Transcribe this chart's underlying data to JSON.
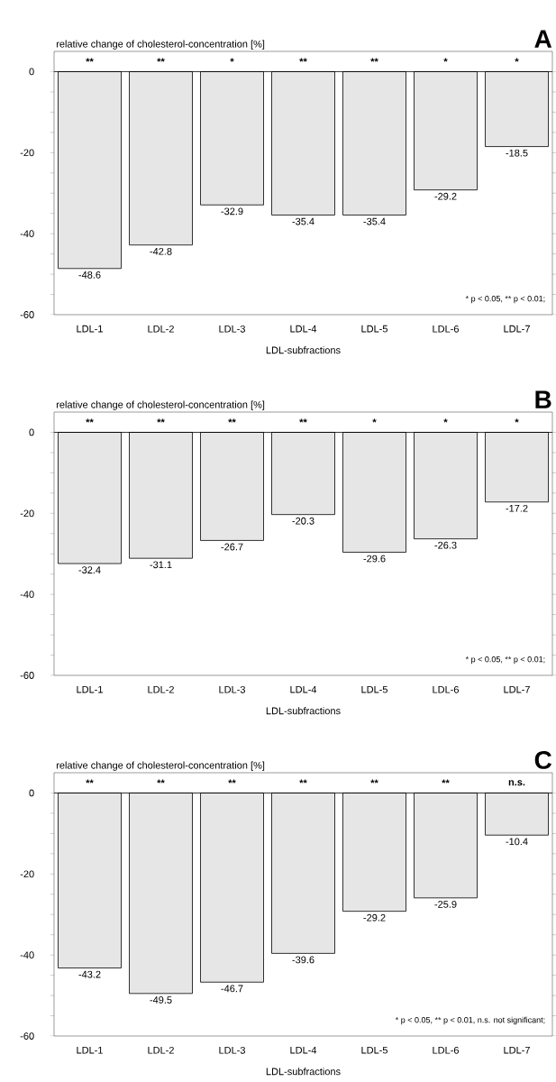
{
  "chart_data": [
    {
      "type": "bar",
      "title": "A",
      "ylabel": "relative change of cholesterol-concentration [%]",
      "xlabel": "LDL-subfractions",
      "categories": [
        "LDL-1",
        "LDL-2",
        "LDL-3",
        "LDL-4",
        "LDL-5",
        "LDL-6",
        "LDL-7"
      ],
      "values": [
        -48.6,
        -42.8,
        -32.9,
        -35.4,
        -35.4,
        -29.2,
        -18.5
      ],
      "color": "#e6e6e6",
      "data_labels": true,
      "ylim": [
        -60,
        5
      ],
      "yticks": [
        0,
        {
          "value": -5,
          "label": null
        },
        {
          "value": -10,
          "label": null
        },
        {
          "value": -15,
          "label": null
        },
        -20,
        {
          "value": -25,
          "label": null
        },
        {
          "value": -30,
          "label": null
        },
        {
          "value": -35,
          "label": null
        },
        -40,
        {
          "value": -45,
          "label": null
        },
        {
          "value": -50,
          "label": null
        },
        {
          "value": -55,
          "label": null
        },
        -60
      ],
      "ref_lines": [
        {
          "axis": "y",
          "value": 0
        }
      ],
      "annotations": [
        "**",
        "**",
        "*",
        "**",
        "**",
        "*",
        "*",
        "* p < 0.05,  ** p < 0.01;"
      ]
    },
    {
      "type": "bar",
      "title": "B",
      "ylabel": "relative change of cholesterol-concentration [%]",
      "xlabel": "LDL-subfractions",
      "categories": [
        "LDL-1",
        "LDL-2",
        "LDL-3",
        "LDL-4",
        "LDL-5",
        "LDL-6",
        "LDL-7"
      ],
      "values": [
        -32.4,
        -31.1,
        -26.7,
        -20.3,
        -29.6,
        -26.3,
        -17.2
      ],
      "color": "#e6e6e6",
      "data_labels": true,
      "ylim": [
        -60,
        5
      ],
      "yticks": [
        0,
        {
          "value": -5,
          "label": null
        },
        {
          "value": -10,
          "label": null
        },
        {
          "value": -15,
          "label": null
        },
        -20,
        {
          "value": -25,
          "label": null
        },
        {
          "value": -30,
          "label": null
        },
        {
          "value": -35,
          "label": null
        },
        -40,
        {
          "value": -45,
          "label": null
        },
        {
          "value": -50,
          "label": null
        },
        {
          "value": -55,
          "label": null
        },
        -60
      ],
      "ref_lines": [
        {
          "axis": "y",
          "value": 0
        }
      ],
      "annotations": [
        "**",
        "**",
        "**",
        "**",
        "*",
        "*",
        "*",
        "* p < 0.05,  ** p < 0.01;"
      ]
    },
    {
      "type": "bar",
      "title": "C",
      "ylabel": "relative change of cholesterol-concentration [%]",
      "xlabel": "LDL-subfractions",
      "categories": [
        "LDL-1",
        "LDL-2",
        "LDL-3",
        "LDL-4",
        "LDL-5",
        "LDL-6",
        "LDL-7"
      ],
      "values": [
        -43.2,
        -49.5,
        -46.7,
        -39.6,
        -29.2,
        -25.9,
        -10.4
      ],
      "color": "#e6e6e6",
      "data_labels": true,
      "ylim": [
        -60,
        5
      ],
      "yticks": [
        0,
        {
          "value": -5,
          "label": null
        },
        {
          "value": -10,
          "label": null
        },
        {
          "value": -15,
          "label": null
        },
        -20,
        {
          "value": -25,
          "label": null
        },
        {
          "value": -30,
          "label": null
        },
        {
          "value": -35,
          "label": null
        },
        -40,
        {
          "value": -45,
          "label": null
        },
        {
          "value": -50,
          "label": null
        },
        {
          "value": -55,
          "label": null
        },
        -60
      ],
      "ref_lines": [
        {
          "axis": "y",
          "value": 0
        }
      ],
      "annotations": [
        "**",
        "**",
        "**",
        "**",
        "**",
        "**",
        "n.s.",
        "* p < 0.05,  ** p < 0.01,  n.s. not significant;"
      ]
    }
  ]
}
